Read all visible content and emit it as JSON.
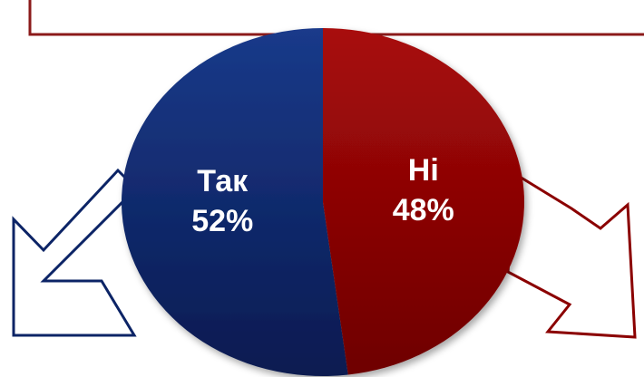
{
  "chart_data": {
    "type": "pie",
    "categories": [
      "Так",
      "Ні"
    ],
    "values": [
      52,
      48
    ],
    "labels": [
      {
        "name": "Так",
        "value": "52%"
      },
      {
        "name": "Ні",
        "value": "48%"
      }
    ],
    "colors": [
      "#0c2466",
      "#8b0000"
    ],
    "title": "",
    "legend": "none"
  },
  "decorations": {
    "frame_color": "#8b1a1a",
    "arrow_left_color": "#0c2466",
    "arrow_right_color": "#8b0000"
  }
}
